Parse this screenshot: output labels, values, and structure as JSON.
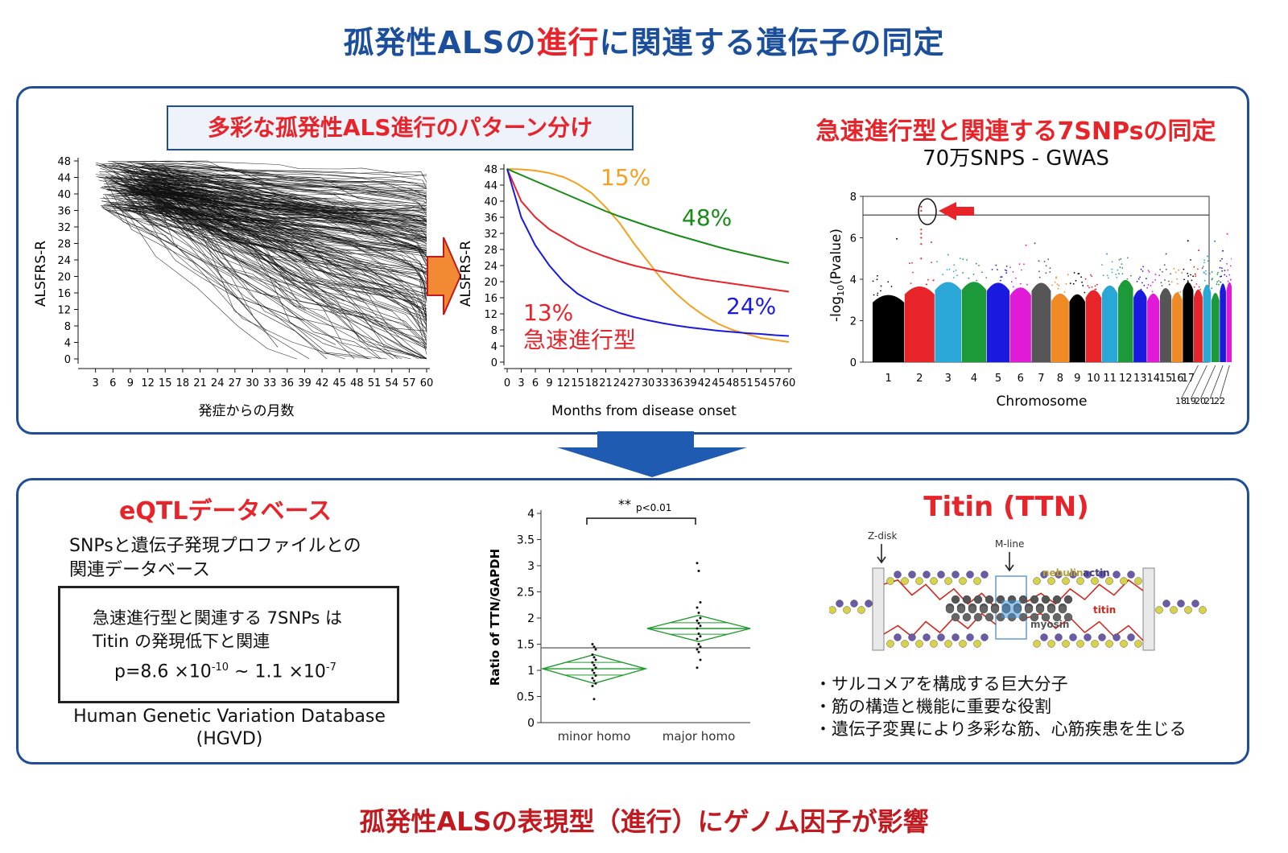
{
  "title": {
    "pre": "孤発性ALSの",
    "highlight": "進行",
    "post": "に関連する遺伝子の同定"
  },
  "top_panel": {
    "pattern_header": "多彩な孤発性ALS進行のパターン分け",
    "snp_header": "急速進行型と関連する7SNPsの同定",
    "snp_subheader": "70万SNPS - GWAS"
  },
  "colors": {
    "frame": "#1f4e96",
    "accent_red": "#e8242b",
    "orange": "#f4a020",
    "green": "#178a17",
    "blue": "#1a1adf"
  },
  "chart_data": [
    {
      "type": "line",
      "title": "",
      "xlabel": "発症からの月数",
      "ylabel": "ALSFRS-R",
      "xlim": [
        0,
        60
      ],
      "ylim": [
        0,
        48
      ],
      "x_ticks": [
        3,
        6,
        9,
        12,
        15,
        18,
        21,
        24,
        27,
        30,
        33,
        36,
        39,
        42,
        45,
        48,
        51,
        54,
        57,
        60
      ],
      "y_ticks": [
        0,
        4,
        8,
        12,
        16,
        20,
        24,
        28,
        32,
        36,
        40,
        44,
        48
      ],
      "note": "individual patient trajectories (approx. 300 lines declining from 48)"
    },
    {
      "type": "line",
      "title": "",
      "xlabel": "Months from disease onset",
      "ylabel": "ALSFRS-R",
      "xlim": [
        0,
        60
      ],
      "ylim": [
        0,
        48
      ],
      "x_ticks": [
        0,
        3,
        6,
        9,
        12,
        15,
        18,
        21,
        24,
        27,
        30,
        33,
        36,
        39,
        42,
        45,
        48,
        51,
        54,
        57,
        60
      ],
      "y_ticks": [
        0,
        4,
        8,
        12,
        16,
        20,
        24,
        28,
        32,
        36,
        40,
        44,
        48
      ],
      "x": [
        0,
        3,
        6,
        9,
        12,
        15,
        18,
        21,
        24,
        27,
        30,
        33,
        36,
        39,
        42,
        45,
        48,
        51,
        54,
        57,
        60
      ],
      "series": [
        {
          "name": "15%",
          "color": "#f4a020",
          "values": [
            48,
            47.9,
            47.6,
            47,
            46,
            44.3,
            42,
            38.5,
            34.5,
            29.5,
            25,
            20.5,
            17,
            14,
            11.5,
            9.5,
            8,
            7,
            6,
            5.5,
            5
          ]
        },
        {
          "name": "48%",
          "color": "#178a17",
          "values": [
            48,
            46.5,
            45,
            43.5,
            42,
            40.5,
            39,
            37.5,
            36.2,
            35,
            33.8,
            32.7,
            31.6,
            30.6,
            29.6,
            28.6,
            27.7,
            26.9,
            26.1,
            25.3,
            24.6
          ]
        },
        {
          "name": "24%",
          "color": "#e8242b",
          "values": [
            48,
            40,
            36,
            33,
            31,
            29,
            27.5,
            26.2,
            25,
            24,
            23.2,
            22.5,
            21.8,
            21.1,
            20.5,
            20,
            19.5,
            19,
            18.5,
            18,
            17.5
          ]
        },
        {
          "name": "13%",
          "color": "#1a1adf",
          "values": [
            48,
            36,
            29,
            24,
            20,
            17,
            15,
            13.5,
            12.2,
            11.2,
            10.4,
            9.7,
            9.1,
            8.6,
            8.2,
            7.8,
            7.5,
            7.2,
            7,
            6.7,
            6.5
          ]
        }
      ],
      "annotations": {
        "fast_type": "急速進行型"
      }
    },
    {
      "type": "scatter",
      "title": "",
      "xlabel": "Chromosome",
      "ylabel_pre": "-log",
      "ylabel_sub": "10",
      "ylabel_post": "(Pvalue)",
      "ylim": [
        0,
        8
      ],
      "y_ticks": [
        0,
        2,
        4,
        6,
        8
      ],
      "threshold": 7.1,
      "chromosomes": [
        "1",
        "2",
        "3",
        "4",
        "5",
        "6",
        "7",
        "8",
        "9",
        "10",
        "11",
        "12",
        "13",
        "14",
        "15",
        "16",
        "17",
        "18",
        "19",
        "20",
        "21",
        "22"
      ],
      "colors": [
        "#000000",
        "#e8242b",
        "#2aa7d6",
        "#1c9a3a",
        "#1a1adf",
        "#e01ad6",
        "#555555",
        "#f08a24",
        "#000000",
        "#e8242b",
        "#2aa7d6",
        "#1c9a3a",
        "#1a1adf",
        "#e01ad6",
        "#555555",
        "#f08a24",
        "#000000",
        "#e8242b",
        "#2aa7d6",
        "#1c9a3a",
        "#1a1adf",
        "#e01ad6"
      ],
      "top_hit": {
        "chromosome": "2",
        "value": 7.5
      }
    },
    {
      "type": "scatter",
      "title": "",
      "xlabel": "",
      "ylabel": "Ratio of TTN/GAPDH",
      "categories": [
        "minor homo",
        "major homo"
      ],
      "ylim": [
        0,
        4
      ],
      "y_ticks": [
        "0",
        "0.5",
        "1",
        "1.5",
        "2",
        "2.5",
        "3",
        "3.5",
        "4"
      ],
      "means": [
        1.03,
        1.8
      ],
      "grand_mean": 1.43,
      "ci": [
        [
          0.75,
          1.3
        ],
        [
          1.55,
          2.05
        ]
      ],
      "significance": {
        "stars": "**",
        "label": "p<0.01"
      },
      "points": [
        [
          1.5,
          1.45,
          1.4,
          1.3,
          1.25,
          1.2,
          1.15,
          1.1,
          1.05,
          1.0,
          0.95,
          0.9,
          0.85,
          0.8,
          0.75,
          0.7,
          0.45
        ],
        [
          3.05,
          2.9,
          2.3,
          2.2,
          2.1,
          2.0,
          1.95,
          1.9,
          1.85,
          1.8,
          1.7,
          1.65,
          1.6,
          1.5,
          1.45,
          1.4,
          1.35,
          1.2,
          1.05
        ]
      ]
    }
  ],
  "eqtl": {
    "header": "eQTLデータベース",
    "desc_line1": "SNPsと遺伝子発現プロファイルとの",
    "desc_line2": "関連データベース",
    "box_line1": "急速進行型と関連する 7SNPs は",
    "box_line2": "Titin の発現低下と関連",
    "p_prefix": "p=8.6 ×10",
    "p_exp1": "-10",
    "p_mid": " ~ 1.1 ×10",
    "p_exp2": "-7",
    "db_name": "Human Genetic Variation Database",
    "db_abbr": "(HGVD)"
  },
  "titin": {
    "header": "Titin (TTN)",
    "labels": {
      "zdisk": "Z-disk",
      "mline": "M-line",
      "nebulin": "nebulin",
      "actin": "actin",
      "titin": "titin",
      "myosin": "myosin"
    },
    "bullets": [
      "・サルコメアを構成する巨大分子",
      "・筋の構造と機能に重要な役割",
      "・遺伝子変異により多彩な筋、心筋疾患を生じる"
    ]
  },
  "conclusion": "孤発性ALSの表現型（進行）にゲノム因子が影響"
}
